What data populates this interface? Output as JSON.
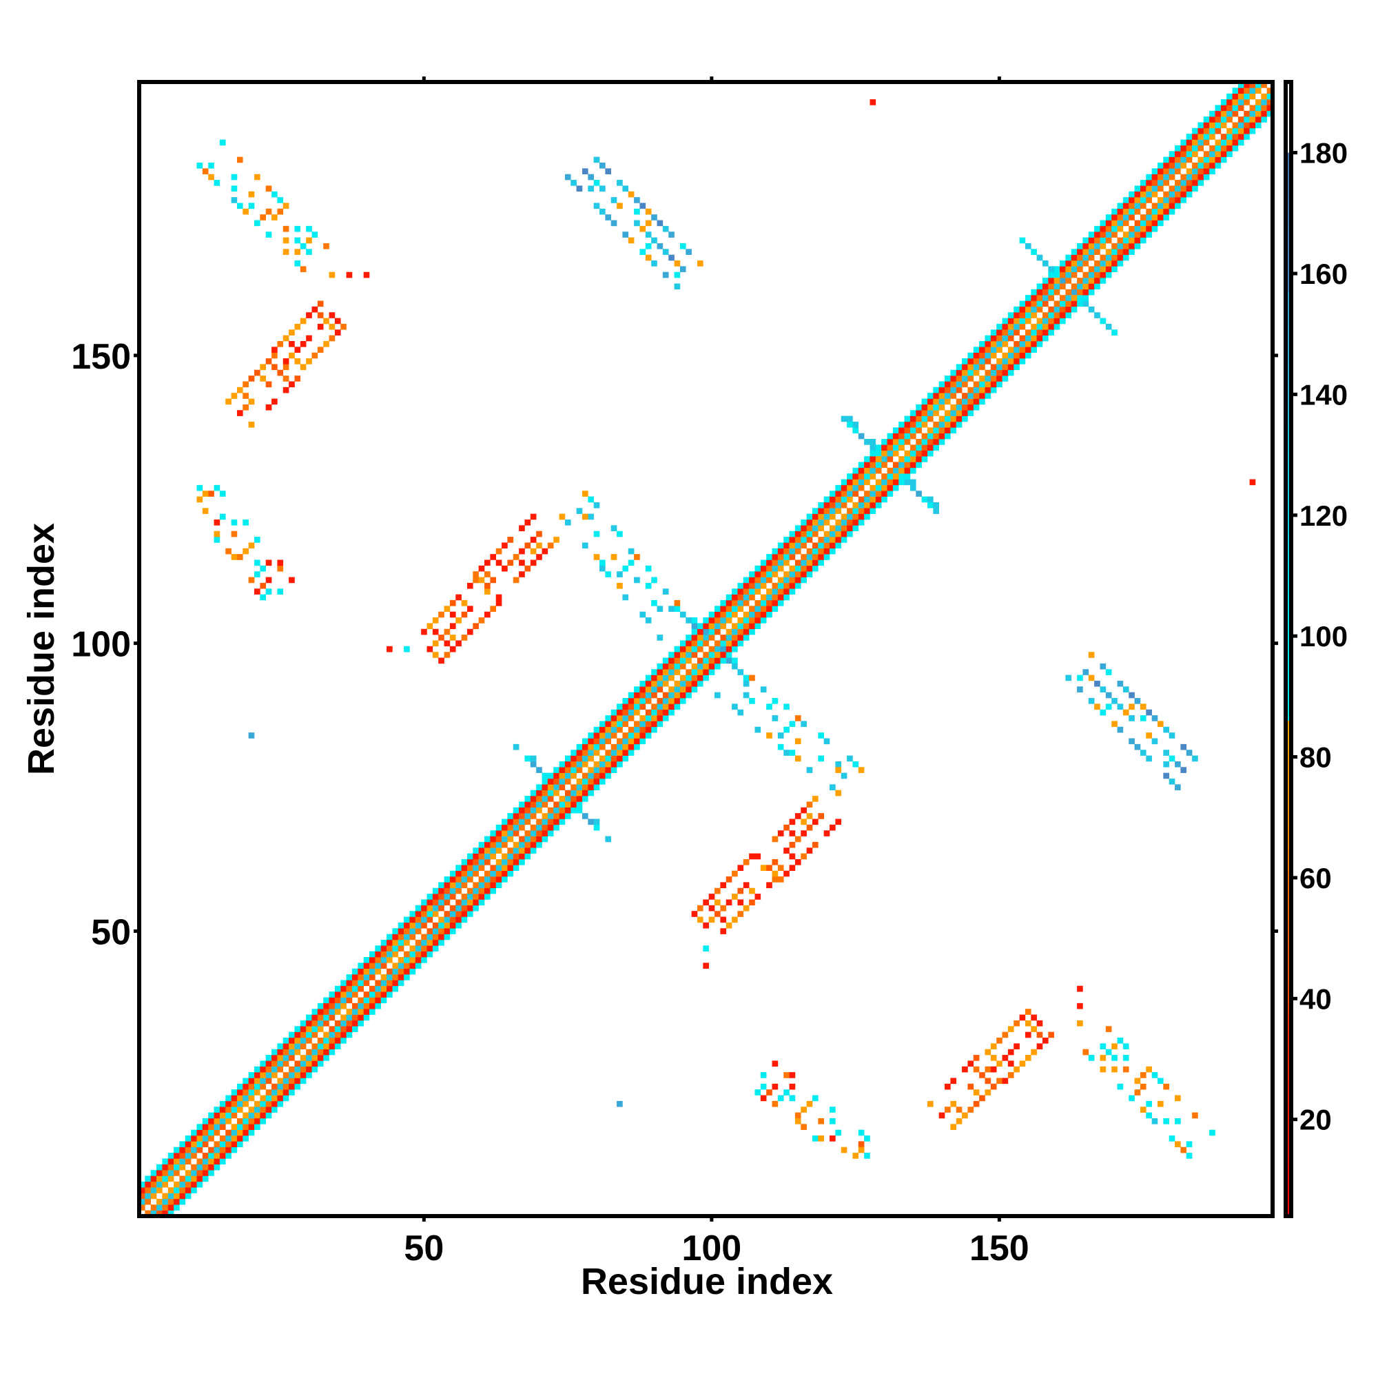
{
  "chart_data": {
    "type": "heatmap",
    "title": "",
    "xlabel": "Residue index",
    "ylabel": "Residue index",
    "xlim": [
      0.5,
      197.5
    ],
    "ylim": [
      0.5,
      197.5
    ],
    "n_residues": 197,
    "x_ticks": [
      50,
      100,
      150
    ],
    "y_ticks": [
      50,
      100,
      150
    ],
    "symmetric": true,
    "colorbar": {
      "range": [
        4,
        191.7
      ],
      "ticks": [
        20,
        40,
        60,
        80,
        100,
        120,
        140,
        160,
        180
      ],
      "stops": [
        {
          "v": 4,
          "color": "#ff0000"
        },
        {
          "v": 36,
          "color": "#ff2a00"
        },
        {
          "v": 40,
          "color": "#ff5000"
        },
        {
          "v": 58,
          "color": "#ff6e00"
        },
        {
          "v": 72,
          "color": "#ff9000"
        },
        {
          "v": 86,
          "color": "#ffa500"
        },
        {
          "v": 86.01,
          "color": "#00eeee"
        },
        {
          "v": 105,
          "color": "#00e2ee"
        },
        {
          "v": 125,
          "color": "#1ccbe6"
        },
        {
          "v": 145,
          "color": "#2fb0da"
        },
        {
          "v": 157,
          "color": "#3b9dd0"
        },
        {
          "v": 157.01,
          "color": "#4a86c4"
        },
        {
          "v": 180,
          "color": "#4a78b8"
        },
        {
          "v": 180.01,
          "color": "#ffffff"
        },
        {
          "v": 191.7,
          "color": "#ffffff"
        }
      ]
    },
    "diagonal_band": [
      {
        "offset": 0,
        "value": null
      },
      {
        "offset": 1,
        "value_range": [
          45,
          82
        ]
      },
      {
        "offset": 2,
        "value_range": [
          92,
          140
        ]
      },
      {
        "offset": 3,
        "value_range": [
          45,
          82
        ]
      },
      {
        "offset": 4,
        "value_range": [
          8,
          34
        ]
      },
      {
        "offset": 5,
        "value_range": [
          88,
          104
        ]
      }
    ],
    "hairpins": [
      {
        "center": 74,
        "length": 8,
        "value_range": [
          95,
          160
        ]
      },
      {
        "center": 100,
        "length": 7,
        "value_range": [
          95,
          160
        ]
      },
      {
        "center": 131,
        "length": 8,
        "value_range": [
          90,
          150
        ]
      },
      {
        "center": 162,
        "length": 9,
        "value_range": [
          90,
          160
        ]
      }
    ],
    "strands": [
      {
        "orientation": "antiparallel",
        "start": [
          164,
          96
        ],
        "end": [
          183,
          77
        ],
        "value_range": [
          70,
          175
        ],
        "density": 0.75
      },
      {
        "orientation": "parallel",
        "start": [
          99,
          51
        ],
        "end": [
          120,
          71
        ],
        "value_range": [
          8,
          85
        ],
        "density": 0.8
      },
      {
        "orientation": "antiparallel",
        "start": [
          102,
          94
        ],
        "end": [
          124,
          76
        ],
        "value_range": [
          60,
          140
        ],
        "density": 0.45
      },
      {
        "orientation": "parallel",
        "start": [
          140,
          18
        ],
        "end": [
          157,
          34
        ],
        "value_range": [
          8,
          85
        ],
        "density": 0.8
      },
      {
        "orientation": "antiparallel",
        "start": [
          167,
          31
        ],
        "end": [
          185,
          13
        ],
        "value_range": [
          50,
          115
        ],
        "density": 0.45
      },
      {
        "orientation": "antiparallel",
        "start": [
          109,
          25
        ],
        "end": [
          128,
          10
        ],
        "value_range": [
          20,
          110
        ],
        "density": 0.45
      }
    ],
    "isolated_contacts": [
      {
        "x": 84,
        "y": 20,
        "value": 150
      },
      {
        "x": 194,
        "y": 128,
        "value": 20
      },
      {
        "x": 99,
        "y": 44,
        "value": 25
      },
      {
        "x": 99,
        "y": 47,
        "value": 100
      },
      {
        "x": 164,
        "y": 40,
        "value": 25
      },
      {
        "x": 164,
        "y": 37,
        "value": 30
      },
      {
        "x": 164,
        "y": 34,
        "value": 70
      }
    ]
  }
}
